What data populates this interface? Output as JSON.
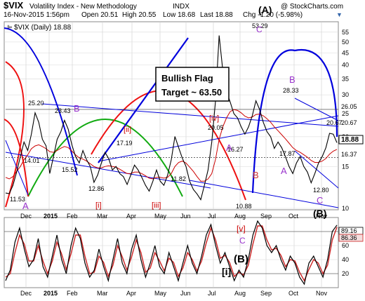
{
  "header": {
    "symbol": "$VIX",
    "name": "Volatility Index - New Methodology",
    "exchange": "INDX",
    "date_time": "16-Nov-2015 1:56pm",
    "open": "Open 20.51",
    "high": "High 20.55",
    "low": "Low 18.68",
    "last": "Last 18.88",
    "chg": "Chg -1.20 (-5.98%)",
    "watermark": "@ StockCharts.com",
    "legend": "$VIX (Daily) 18.88"
  },
  "annotation_box": {
    "line1": "Bullish Flag",
    "line2": "Target ~ 63.50"
  },
  "colors": {
    "price_line": "#000000",
    "ma": "#cc0000",
    "red_arc": "#ee1111",
    "green_arc": "#11aa11",
    "blue": "#0000dd",
    "label_red": "#cc0000",
    "label_purple": "#9933cc",
    "label_pink": "#cc3333",
    "osc_fast": "#000000",
    "osc_slow": "#cc2222",
    "last_tag_bg": "#000000"
  },
  "chart_data": [
    {
      "type": "line",
      "title": "$VIX (Daily) 18.88",
      "x_labels": [
        "Dec",
        "2015",
        "Feb",
        "Mar",
        "Apr",
        "May",
        "Jun",
        "Jul",
        "Aug",
        "Sep",
        "Oct",
        "Nov"
      ],
      "y_scale": "log",
      "ylim": [
        10,
        60
      ],
      "y_ticks": [
        10,
        15,
        20,
        25,
        30,
        35,
        40,
        45,
        50,
        55
      ],
      "right_tags": [
        "26.05",
        "20.67",
        "18.88",
        "16.37"
      ],
      "series": [
        {
          "values": [
            11.6,
            11.53,
            12.5,
            14.2,
            16.5,
            19.0,
            17.5,
            20.5,
            25.2,
            23.0,
            19.5,
            18.3,
            14.01,
            16.5,
            19.5,
            21.0,
            23.43,
            21.5,
            18.5,
            16.5,
            15.52,
            17.5,
            16.0,
            15.0,
            12.86,
            13.8,
            15.5,
            17.19,
            16.2,
            14.5,
            15.0,
            14.0,
            13.6,
            12.6,
            13.8,
            15.2,
            14.5,
            13.5,
            12.5,
            11.82,
            13.0,
            14.5,
            13.0,
            12.5,
            13.8,
            16.0,
            20.05,
            18.0,
            16.27,
            15.0,
            13.0,
            12.0,
            11.5,
            10.88,
            12.5,
            14.5,
            19.0,
            28.0,
            53.29,
            38.0,
            31.0,
            28.0,
            25.0,
            24.0,
            22.0,
            20.5,
            22.0,
            24.5,
            28.33,
            26.0,
            23.0,
            21.0,
            20.0,
            17.87,
            19.0,
            18.0,
            16.5,
            15.0,
            14.0,
            15.5,
            16.5,
            15.0,
            14.2,
            12.8,
            14.0,
            15.5,
            16.5,
            18.0,
            20.67,
            20.5,
            18.88
          ]
        },
        {
          "values": [
            13.5,
            13.3,
            13.6,
            14.3,
            15.0,
            16.0,
            16.8,
            17.8,
            18.3,
            18.5,
            18.2,
            17.8,
            17.3,
            17.2,
            17.5,
            17.9,
            18.2,
            18.0,
            17.4,
            16.8,
            16.3,
            16.1,
            15.8,
            15.4,
            15.0,
            14.8,
            14.8,
            15.0,
            15.1,
            15.0,
            14.9,
            14.6,
            14.3,
            14.0,
            14.0,
            14.2,
            14.2,
            14.0,
            13.7,
            13.4,
            13.3,
            13.5,
            13.5,
            13.4,
            13.5,
            14.0,
            15.0,
            15.6,
            15.8,
            15.5,
            14.9,
            14.3,
            13.6,
            13.0,
            13.0,
            13.3,
            14.0,
            16.0,
            19.5,
            22.0,
            24.0,
            25.5,
            26.0,
            25.8,
            25.2,
            24.4,
            24.0,
            24.2,
            24.8,
            24.9,
            24.5,
            23.8,
            23.0,
            22.0,
            21.2,
            20.4,
            19.6,
            18.8,
            18.0,
            17.5,
            17.2,
            16.8,
            16.4,
            15.9,
            15.6,
            15.6,
            15.8,
            16.2,
            16.9,
            17.4,
            17.7
          ]
        }
      ],
      "horizontal_levels": [
        26.05,
        16.37
      ],
      "text_labels": [
        "11.53",
        "25.20",
        "23.43",
        "14.01",
        "15.52",
        "12.86",
        "17.19",
        "11.82",
        "20.05",
        "16.27",
        "10.88",
        "53.29",
        "28.33",
        "17.87",
        "20.67",
        "12.80"
      ],
      "wave_labels": [
        "A",
        "B",
        "[i]",
        "[ii]",
        "[iii]",
        "[iv]",
        "A",
        "B",
        "(A)",
        "C",
        "B",
        "A",
        "C",
        "(B)",
        "[i]"
      ]
    },
    {
      "type": "line",
      "title": "",
      "x_labels": [
        "Dec",
        "2015",
        "Feb",
        "Mar",
        "Apr",
        "May",
        "Jun",
        "Jul",
        "Aug",
        "Sep",
        "Oct",
        "Nov"
      ],
      "ylim": [
        0,
        100
      ],
      "y_ticks": [
        20,
        40,
        60,
        80
      ],
      "right_tags": [
        "89.16",
        "86.36"
      ],
      "horizontal_levels": [
        80,
        20
      ],
      "wave_labels": [
        "[v]",
        "C",
        "(B)"
      ],
      "series": [
        {
          "values": [
            10,
            25,
            65,
            85,
            55,
            30,
            40,
            70,
            30,
            15,
            45,
            75,
            40,
            20,
            60,
            85,
            70,
            35,
            15,
            25,
            55,
            30,
            10,
            40,
            70,
            35,
            20,
            55,
            75,
            40,
            15,
            35,
            60,
            30,
            20,
            50,
            30,
            10,
            35,
            60,
            35,
            20,
            45,
            75,
            90,
            60,
            35,
            50,
            30,
            10,
            25,
            15,
            40,
            75,
            95,
            85,
            60,
            50,
            60,
            40,
            25,
            45,
            35,
            15,
            5,
            35,
            45,
            30,
            15,
            40,
            80,
            89.16
          ]
        },
        {
          "values": [
            15,
            20,
            50,
            75,
            62,
            38,
            38,
            60,
            38,
            20,
            38,
            65,
            48,
            26,
            48,
            75,
            75,
            45,
            20,
            22,
            45,
            36,
            16,
            32,
            60,
            44,
            25,
            44,
            68,
            50,
            22,
            28,
            50,
            38,
            24,
            42,
            36,
            16,
            28,
            50,
            40,
            24,
            38,
            64,
            85,
            68,
            42,
            46,
            36,
            16,
            22,
            18,
            32,
            62,
            88,
            88,
            68,
            54,
            56,
            46,
            30,
            40,
            38,
            22,
            10,
            26,
            40,
            35,
            20,
            32,
            68,
            86.36
          ]
        }
      ]
    }
  ]
}
